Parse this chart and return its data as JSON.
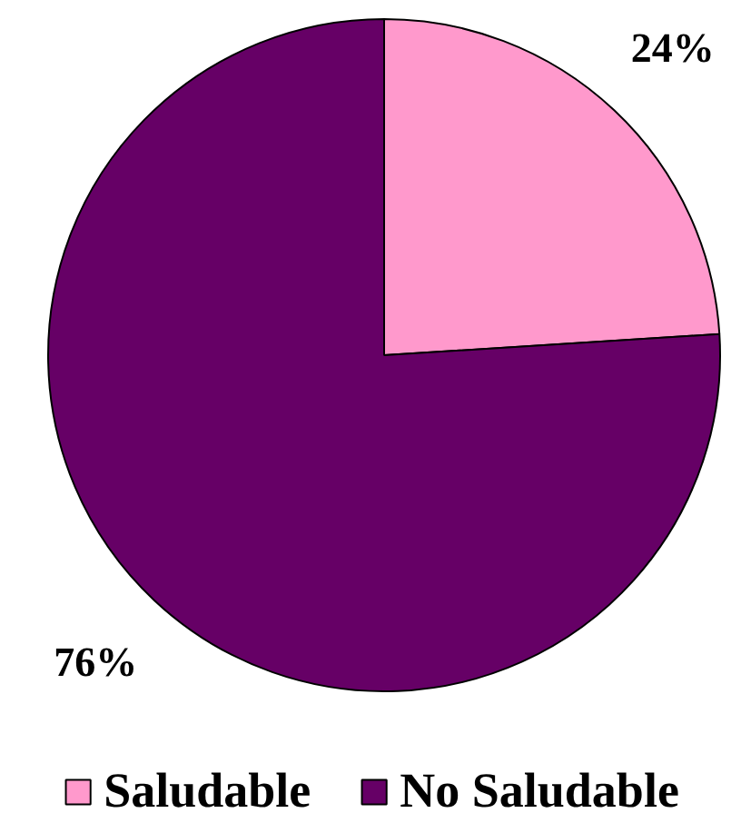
{
  "chart_data": {
    "type": "pie",
    "categories": [
      "Saludable",
      "No Saludable"
    ],
    "values": [
      24,
      76
    ],
    "colors": [
      "#ff99cc",
      "#660066"
    ],
    "value_labels": [
      "24%",
      "76%"
    ],
    "legend": "bottom"
  }
}
